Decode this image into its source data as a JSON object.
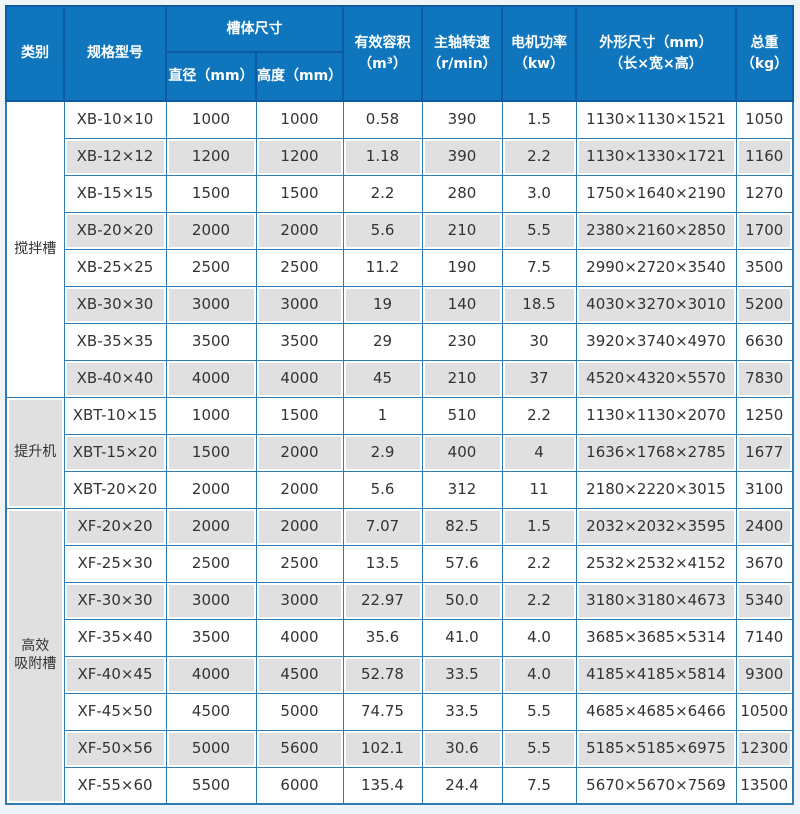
{
  "colors": {
    "header_bg": "#0f76bd",
    "header_border": "#0b5ca5",
    "grid_blue": "#2f7cb5",
    "stripe_gray": "#e0e0e0",
    "frame_bg": "#eef3f8",
    "text": "#333333"
  },
  "table": {
    "headers": {
      "category": "类别",
      "model": "规格型号",
      "tank_size": "槽体尺寸",
      "diameter": "直径（mm）",
      "height": "高度（mm）",
      "volume_l1": "有效容积",
      "volume_l2": "（m³）",
      "speed_l1": "主轴转速",
      "speed_l2": "（r/min）",
      "power_l1": "电机功率",
      "power_l2": "（kw）",
      "dims_l1": "外形尺寸（mm）",
      "dims_l2": "（长×宽×高）",
      "weight_l1": "总重",
      "weight_l2": "（kg）"
    },
    "groups": [
      {
        "category": "搅拌槽",
        "rows": [
          [
            "XB-10×10",
            "1000",
            "1000",
            "0.58",
            "390",
            "1.5",
            "1130×1130×1521",
            "1050"
          ],
          [
            "XB-12×12",
            "1200",
            "1200",
            "1.18",
            "390",
            "2.2",
            "1130×1330×1721",
            "1160"
          ],
          [
            "XB-15×15",
            "1500",
            "1500",
            "2.2",
            "280",
            "3.0",
            "1750×1640×2190",
            "1270"
          ],
          [
            "XB-20×20",
            "2000",
            "2000",
            "5.6",
            "210",
            "5.5",
            "2380×2160×2850",
            "1700"
          ],
          [
            "XB-25×25",
            "2500",
            "2500",
            "11.2",
            "190",
            "7.5",
            "2990×2720×3540",
            "3500"
          ],
          [
            "XB-30×30",
            "3000",
            "3000",
            "19",
            "140",
            "18.5",
            "4030×3270×3010",
            "5200"
          ],
          [
            "XB-35×35",
            "3500",
            "3500",
            "29",
            "230",
            "30",
            "3920×3740×4970",
            "6630"
          ],
          [
            "XB-40×40",
            "4000",
            "4000",
            "45",
            "210",
            "37",
            "4520×4320×5570",
            "7830"
          ]
        ]
      },
      {
        "category": "提升机",
        "rows": [
          [
            "XBT-10×15",
            "1000",
            "1500",
            "1",
            "510",
            "2.2",
            "1130×1130×2070",
            "1250"
          ],
          [
            "XBT-15×20",
            "1500",
            "2000",
            "2.9",
            "400",
            "4",
            "1636×1768×2785",
            "1677"
          ],
          [
            "XBT-20×20",
            "2000",
            "2000",
            "5.6",
            "312",
            "11",
            "2180×2220×3015",
            "3100"
          ]
        ]
      },
      {
        "category": "高效\n吸附槽",
        "rows": [
          [
            "XF-20×20",
            "2000",
            "2000",
            "7.07",
            "82.5",
            "1.5",
            "2032×2032×3595",
            "2400"
          ],
          [
            "XF-25×30",
            "2500",
            "2500",
            "13.5",
            "57.6",
            "2.2",
            "2532×2532×4152",
            "3670"
          ],
          [
            "XF-30×30",
            "3000",
            "3000",
            "22.97",
            "50.0",
            "2.2",
            "3180×3180×4673",
            "5340"
          ],
          [
            "XF-35×40",
            "3500",
            "4000",
            "35.6",
            "41.0",
            "4.0",
            "3685×3685×5314",
            "7140"
          ],
          [
            "XF-40×45",
            "4000",
            "4500",
            "52.78",
            "33.5",
            "4.0",
            "4185×4185×5814",
            "9300"
          ],
          [
            "XF-45×50",
            "4500",
            "5000",
            "74.75",
            "33.5",
            "5.5",
            "4685×4685×6466",
            "10500"
          ],
          [
            "XF-50×56",
            "5000",
            "5600",
            "102.1",
            "30.6",
            "5.5",
            "5185×5185×6975",
            "12300"
          ],
          [
            "XF-55×60",
            "5500",
            "6000",
            "135.4",
            "24.4",
            "7.5",
            "5670×5670×7569",
            "13500"
          ]
        ]
      }
    ]
  }
}
